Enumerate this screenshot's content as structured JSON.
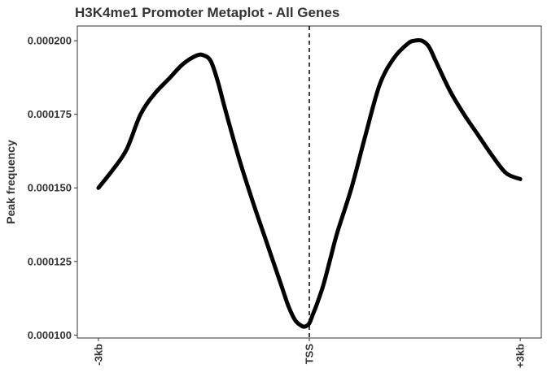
{
  "chart_data": {
    "type": "line",
    "title": "H3K4me1 Promoter Metaplot - All Genes",
    "xlabel": "",
    "ylabel": "Peak frequency",
    "x_ticks": [
      {
        "x": -3000,
        "label": "-3kb"
      },
      {
        "x": 0,
        "label": "TSS"
      },
      {
        "x": 3000,
        "label": "+3kb"
      }
    ],
    "y_ticks": [
      {
        "y": 0.0001,
        "label": "0.000100"
      },
      {
        "y": 0.000125,
        "label": "0.000125"
      },
      {
        "y": 0.00015,
        "label": "0.000150"
      },
      {
        "y": 0.000175,
        "label": "0.000175"
      },
      {
        "y": 0.0002,
        "label": "0.000200"
      }
    ],
    "xlim": [
      -3300,
      3300
    ],
    "ylim": [
      9.9e-05,
      0.000205
    ],
    "vline": {
      "x": 0,
      "style": "dashed"
    },
    "grid": false,
    "line_color": "#000000",
    "series": [
      {
        "x": [
          -3000,
          -2800,
          -2600,
          -2400,
          -2200,
          -2000,
          -1800,
          -1600,
          -1500,
          -1400,
          -1300,
          -1200,
          -1000,
          -800,
          -600,
          -400,
          -300,
          -200,
          -100,
          -50,
          0,
          50,
          100,
          200,
          300,
          400,
          600,
          800,
          1000,
          1200,
          1400,
          1500,
          1600,
          1700,
          1800,
          2000,
          2200,
          2400,
          2600,
          2800,
          3000
        ],
        "y": [
          0.00015,
          0.000156,
          0.000163,
          0.000175,
          0.000182,
          0.000187,
          0.000192,
          0.000195,
          0.000195,
          0.000193,
          0.000186,
          0.000177,
          0.00016,
          0.000145,
          0.000131,
          0.000117,
          0.00011,
          0.000105,
          0.000103,
          0.000103,
          0.000104,
          0.000107,
          0.00011,
          0.000117,
          0.000126,
          0.000135,
          0.00015,
          0.000168,
          0.000185,
          0.000194,
          0.000199,
          0.0002,
          0.0002,
          0.000198,
          0.000193,
          0.000183,
          0.000175,
          0.000168,
          0.000161,
          0.000155,
          0.000153
        ]
      }
    ]
  }
}
